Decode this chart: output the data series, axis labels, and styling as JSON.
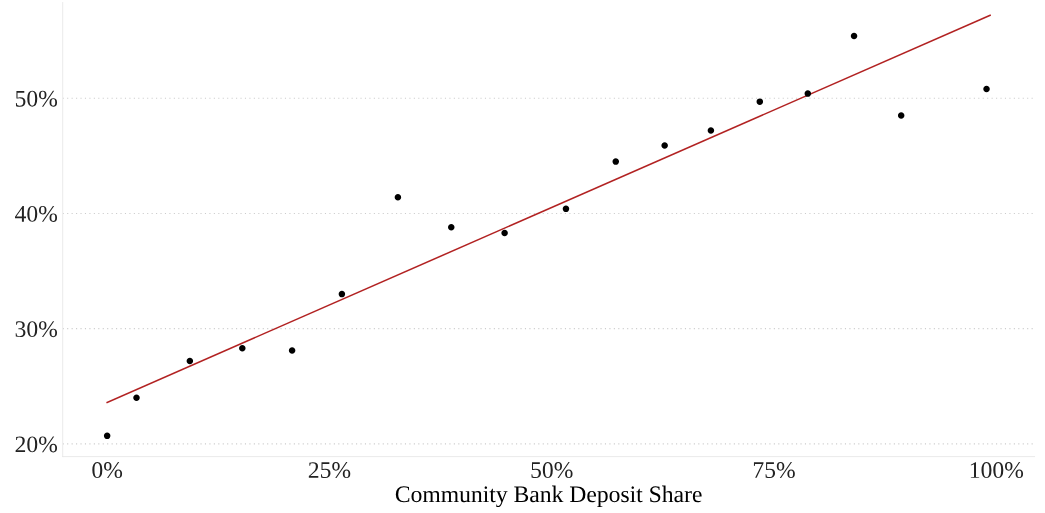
{
  "chart_data": {
    "type": "scatter",
    "xlabel": "Community Bank Deposit Share",
    "x": [
      0,
      3.3,
      9.3,
      15.2,
      20.8,
      26.4,
      32.7,
      38.7,
      44.7,
      51.6,
      57.2,
      62.7,
      67.9,
      73.4,
      78.8,
      84.0,
      89.3,
      98.9
    ],
    "series": [
      {
        "marker": "circle",
        "color": "#000000",
        "values": [
          20.7,
          24.0,
          27.2,
          28.3,
          28.1,
          33.0,
          41.4,
          38.8,
          38.3,
          40.4,
          44.5,
          45.9,
          47.2,
          49.7,
          50.4,
          55.4,
          48.5,
          50.8
        ]
      },
      {
        "type": "line",
        "color": "#b22222",
        "x": [
          0,
          99.3
        ],
        "values": [
          23.6,
          57.2
        ]
      }
    ],
    "grid": "y",
    "xlim": [
      -5,
      104.3
    ],
    "ylim": [
      18.9,
      58.3
    ],
    "xticks": [
      {
        "value": 0,
        "label": "0%"
      },
      {
        "value": 25,
        "label": "25%"
      },
      {
        "value": 50,
        "label": "50%"
      },
      {
        "value": 75,
        "label": "75%"
      },
      {
        "value": 100,
        "label": "100%"
      }
    ],
    "yticks": [
      {
        "value": 20,
        "label": "20%"
      },
      {
        "value": 30,
        "label": "30%"
      },
      {
        "value": 40,
        "label": "40%"
      },
      {
        "value": 50,
        "label": "50%"
      }
    ]
  }
}
